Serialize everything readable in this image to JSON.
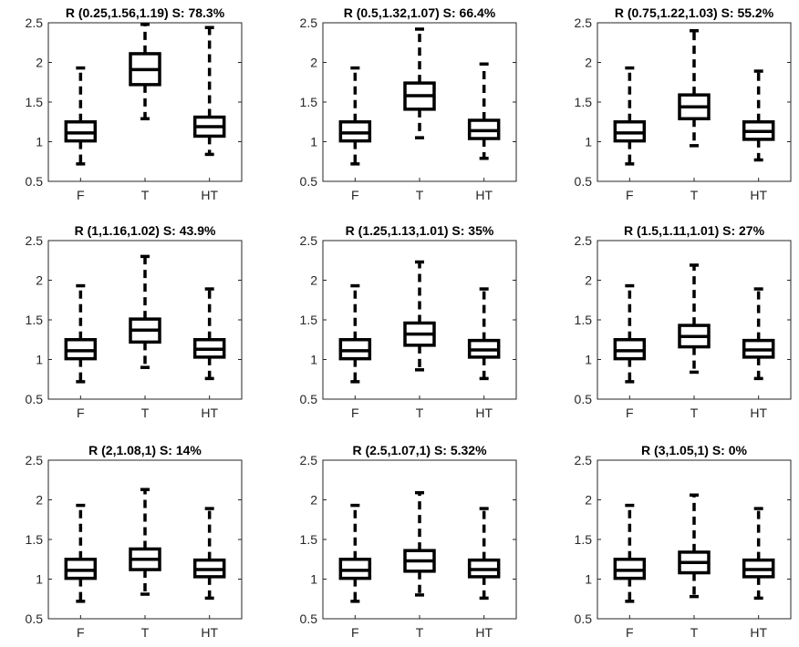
{
  "chart_data": [
    {
      "type": "box",
      "title": "R (0.25,1.56,1.19) S: 78.3%",
      "categories": [
        "F",
        "T",
        "HT"
      ],
      "ylim": [
        0.5,
        2.5
      ],
      "yticks": [
        "0.5",
        "1",
        "1.5",
        "2",
        "2.5"
      ],
      "boxes": [
        {
          "min": 0.72,
          "q1": 1.01,
          "median": 1.11,
          "q3": 1.25,
          "max": 1.93
        },
        {
          "min": 1.29,
          "q1": 1.72,
          "median": 1.91,
          "q3": 2.11,
          "max": 2.48
        },
        {
          "min": 0.84,
          "q1": 1.07,
          "median": 1.19,
          "q3": 1.31,
          "max": 2.44
        }
      ]
    },
    {
      "type": "box",
      "title": "R (0.5,1.32,1.07) S: 66.4%",
      "categories": [
        "F",
        "T",
        "HT"
      ],
      "ylim": [
        0.5,
        2.5
      ],
      "yticks": [
        "0.5",
        "1",
        "1.5",
        "2",
        "2.5"
      ],
      "boxes": [
        {
          "min": 0.72,
          "q1": 1.01,
          "median": 1.11,
          "q3": 1.25,
          "max": 1.93
        },
        {
          "min": 1.05,
          "q1": 1.41,
          "median": 1.58,
          "q3": 1.74,
          "max": 2.42
        },
        {
          "min": 0.79,
          "q1": 1.04,
          "median": 1.14,
          "q3": 1.27,
          "max": 1.98
        }
      ]
    },
    {
      "type": "box",
      "title": "R (0.75,1.22,1.03) S: 55.2%",
      "categories": [
        "F",
        "T",
        "HT"
      ],
      "ylim": [
        0.5,
        2.5
      ],
      "yticks": [
        "0.5",
        "1",
        "1.5",
        "2",
        "2.5"
      ],
      "boxes": [
        {
          "min": 0.72,
          "q1": 1.01,
          "median": 1.11,
          "q3": 1.25,
          "max": 1.93
        },
        {
          "min": 0.95,
          "q1": 1.29,
          "median": 1.44,
          "q3": 1.59,
          "max": 2.4
        },
        {
          "min": 0.77,
          "q1": 1.03,
          "median": 1.13,
          "q3": 1.25,
          "max": 1.89
        }
      ]
    },
    {
      "type": "box",
      "title": "R (1,1.16,1.02) S: 43.9%",
      "categories": [
        "F",
        "T",
        "HT"
      ],
      "ylim": [
        0.5,
        2.5
      ],
      "yticks": [
        "0.5",
        "1",
        "1.5",
        "2",
        "2.5"
      ],
      "boxes": [
        {
          "min": 0.72,
          "q1": 1.01,
          "median": 1.11,
          "q3": 1.25,
          "max": 1.93
        },
        {
          "min": 0.9,
          "q1": 1.22,
          "median": 1.37,
          "q3": 1.51,
          "max": 2.3
        },
        {
          "min": 0.76,
          "q1": 1.03,
          "median": 1.13,
          "q3": 1.25,
          "max": 1.89
        }
      ]
    },
    {
      "type": "box",
      "title": "R (1.25,1.13,1.01) S: 35%",
      "categories": [
        "F",
        "T",
        "HT"
      ],
      "ylim": [
        0.5,
        2.5
      ],
      "yticks": [
        "0.5",
        "1",
        "1.5",
        "2",
        "2.5"
      ],
      "boxes": [
        {
          "min": 0.72,
          "q1": 1.01,
          "median": 1.11,
          "q3": 1.25,
          "max": 1.93
        },
        {
          "min": 0.87,
          "q1": 1.18,
          "median": 1.32,
          "q3": 1.46,
          "max": 2.23
        },
        {
          "min": 0.76,
          "q1": 1.03,
          "median": 1.12,
          "q3": 1.24,
          "max": 1.89
        }
      ]
    },
    {
      "type": "box",
      "title": "R (1.5,1.11,1.01) S: 27%",
      "categories": [
        "F",
        "T",
        "HT"
      ],
      "ylim": [
        0.5,
        2.5
      ],
      "yticks": [
        "0.5",
        "1",
        "1.5",
        "2",
        "2.5"
      ],
      "boxes": [
        {
          "min": 0.72,
          "q1": 1.01,
          "median": 1.11,
          "q3": 1.25,
          "max": 1.93
        },
        {
          "min": 0.84,
          "q1": 1.16,
          "median": 1.29,
          "q3": 1.43,
          "max": 2.19
        },
        {
          "min": 0.76,
          "q1": 1.03,
          "median": 1.12,
          "q3": 1.24,
          "max": 1.89
        }
      ]
    },
    {
      "type": "box",
      "title": "R (2,1.08,1) S: 14%",
      "categories": [
        "F",
        "T",
        "HT"
      ],
      "ylim": [
        0.5,
        2.5
      ],
      "yticks": [
        "0.5",
        "1",
        "1.5",
        "2",
        "2.5"
      ],
      "boxes": [
        {
          "min": 0.72,
          "q1": 1.01,
          "median": 1.11,
          "q3": 1.25,
          "max": 1.93
        },
        {
          "min": 0.81,
          "q1": 1.12,
          "median": 1.25,
          "q3": 1.38,
          "max": 2.13
        },
        {
          "min": 0.76,
          "q1": 1.03,
          "median": 1.12,
          "q3": 1.24,
          "max": 1.89
        }
      ]
    },
    {
      "type": "box",
      "title": "R (2.5,1.07,1) S: 5.32%",
      "categories": [
        "F",
        "T",
        "HT"
      ],
      "ylim": [
        0.5,
        2.5
      ],
      "yticks": [
        "0.5",
        "1",
        "1.5",
        "2",
        "2.5"
      ],
      "boxes": [
        {
          "min": 0.72,
          "q1": 1.01,
          "median": 1.11,
          "q3": 1.25,
          "max": 1.93
        },
        {
          "min": 0.8,
          "q1": 1.1,
          "median": 1.23,
          "q3": 1.36,
          "max": 2.09
        },
        {
          "min": 0.76,
          "q1": 1.03,
          "median": 1.12,
          "q3": 1.24,
          "max": 1.89
        }
      ]
    },
    {
      "type": "box",
      "title": "R (3,1.05,1) S: 0%",
      "categories": [
        "F",
        "T",
        "HT"
      ],
      "ylim": [
        0.5,
        2.5
      ],
      "yticks": [
        "0.5",
        "1",
        "1.5",
        "2",
        "2.5"
      ],
      "boxes": [
        {
          "min": 0.72,
          "q1": 1.01,
          "median": 1.11,
          "q3": 1.25,
          "max": 1.93
        },
        {
          "min": 0.78,
          "q1": 1.08,
          "median": 1.21,
          "q3": 1.34,
          "max": 2.06
        },
        {
          "min": 0.76,
          "q1": 1.03,
          "median": 1.12,
          "q3": 1.24,
          "max": 1.89
        }
      ]
    }
  ]
}
